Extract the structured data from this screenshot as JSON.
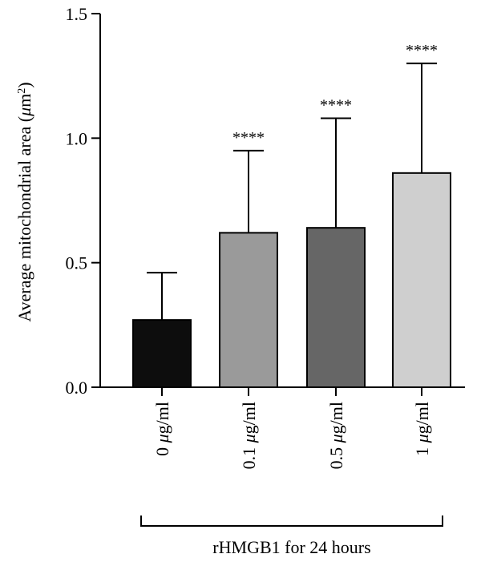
{
  "chart_data": {
    "type": "bar",
    "ylabel": "Average mitochondrial area (μm²)",
    "ylabel_parts": {
      "prefix": "Average mitochondrial area (",
      "mu": "μ",
      "unit": "m",
      "sup": "2",
      "suffix": ")"
    },
    "xlabel": "rHMGB1 for 24 hours",
    "ylim": [
      0,
      1.5
    ],
    "yticks": [
      0.0,
      0.5,
      1.0,
      1.5
    ],
    "ytick_labels": [
      "0.0",
      "0.5",
      "1.0",
      "1.5"
    ],
    "grid": false,
    "categories": [
      "0 μg/ml",
      "0.1 μg/ml",
      "0.5 μg/ml",
      "1 μg/ml"
    ],
    "category_parts": [
      {
        "num": "0 ",
        "mu": "μ",
        "unit": "g/ml"
      },
      {
        "num": "0.1 ",
        "mu": "μ",
        "unit": "g/ml"
      },
      {
        "num": "0.5 ",
        "mu": "μ",
        "unit": "g/ml"
      },
      {
        "num": "1 ",
        "mu": "μ",
        "unit": "g/ml"
      }
    ],
    "values": [
      0.27,
      0.62,
      0.64,
      0.86
    ],
    "errors": [
      0.19,
      0.33,
      0.44,
      0.44
    ],
    "significance": [
      "",
      "****",
      "****",
      "****"
    ],
    "colors": [
      "#0d0d0d",
      "#9a9a9a",
      "#666666",
      "#cfcfcf"
    ]
  }
}
